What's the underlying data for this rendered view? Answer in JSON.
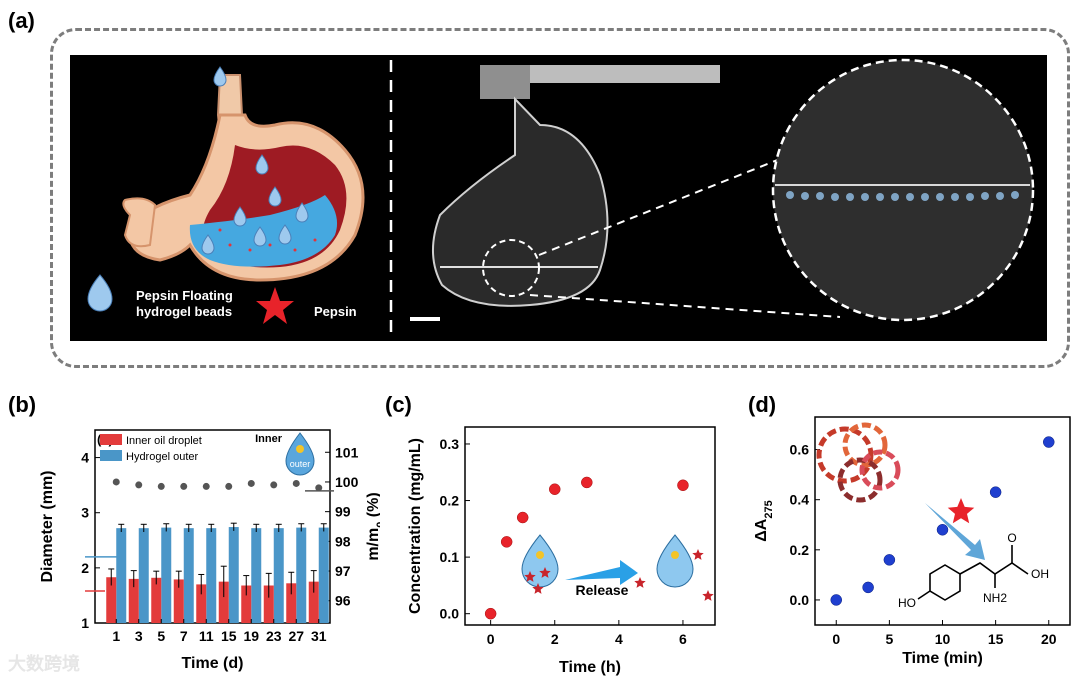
{
  "panel_labels": {
    "a": "(a)",
    "b": "(b)",
    "c": "(c)",
    "d": "(d)"
  },
  "panel_a": {
    "legend_beads": "Pepsin Floating\nhydrogel beads",
    "legend_beads_line1": "Pepsin Floating",
    "legend_beads_line2": "hydrogel beads",
    "legend_pepsin": "Pepsin"
  },
  "colors": {
    "red_marker": "#e8232a",
    "blue_bar": "#4a96c8",
    "red_bar": "#e33b3b",
    "grey_marker": "#555555",
    "blue_marker": "#1f3fcf",
    "frame": "#7d7d7d"
  },
  "watermark": "大数跨境",
  "chart_data": [
    {
      "type": "bar",
      "panel": "b",
      "inset_label": "(a)",
      "categories": [
        "1",
        "3",
        "5",
        "7",
        "11",
        "15",
        "19",
        "23",
        "27",
        "31"
      ],
      "xlabel": "Time (d)",
      "ylabel": "Diameter (mm)",
      "y2label": "m/m0 (%)",
      "y2label_prefix": "m/m",
      "y2label_sub": "0",
      "y2label_suffix": " (%)",
      "ylim": [
        1,
        4.5
      ],
      "yticks": [
        "1",
        "2",
        "3",
        "4"
      ],
      "y2lim": [
        95.25,
        101.75
      ],
      "y2ticks": [
        "96",
        "97",
        "98",
        "99",
        "100",
        "101"
      ],
      "series": [
        {
          "name": "Inner oil droplet",
          "values": [
            1.83,
            1.8,
            1.82,
            1.79,
            1.7,
            1.75,
            1.68,
            1.68,
            1.72,
            1.75
          ],
          "errors": [
            0.15,
            0.15,
            0.12,
            0.15,
            0.18,
            0.28,
            0.18,
            0.22,
            0.2,
            0.2
          ]
        },
        {
          "name": "Hydrogel outer",
          "values": [
            2.72,
            2.72,
            2.73,
            2.72,
            2.72,
            2.74,
            2.72,
            2.72,
            2.73,
            2.73
          ],
          "errors": [
            0.07,
            0.07,
            0.07,
            0.07,
            0.07,
            0.07,
            0.07,
            0.07,
            0.07,
            0.07
          ]
        },
        {
          "name": "mass ratio",
          "axis": "right",
          "values": [
            100.0,
            99.9,
            99.85,
            99.85,
            99.85,
            99.85,
            99.95,
            99.9,
            99.95,
            99.8
          ]
        }
      ],
      "legend": [
        "Inner oil droplet",
        "Hydrogel outer"
      ],
      "inset": {
        "inner": "Inner",
        "outer": "outer"
      }
    },
    {
      "type": "scatter",
      "panel": "c",
      "xlabel": "Time (h)",
      "ylabel": "Concentration (mg/mL)",
      "xlim": [
        -0.8,
        7
      ],
      "ylim": [
        -0.02,
        0.33
      ],
      "xticks": [
        "0",
        "2",
        "4",
        "6"
      ],
      "yticks": [
        "0.0",
        "0.1",
        "0.2",
        "0.3"
      ],
      "x": [
        0,
        0.5,
        1,
        2,
        3,
        6
      ],
      "y": [
        0.0,
        0.127,
        0.17,
        0.22,
        0.232,
        0.227
      ],
      "inset_text": "Release"
    },
    {
      "type": "scatter",
      "panel": "d",
      "xlabel": "Time (min)",
      "ylabel": "ΔA275",
      "ylabel_main": "ΔA",
      "ylabel_sub": "275",
      "xlim": [
        -2,
        22
      ],
      "ylim": [
        -0.1,
        0.73
      ],
      "xticks": [
        "0",
        "5",
        "10",
        "15",
        "20"
      ],
      "yticks": [
        "0.0",
        "0.2",
        "0.4",
        "0.6"
      ],
      "x": [
        0,
        3,
        5,
        10,
        15,
        20
      ],
      "y": [
        0.0,
        0.05,
        0.16,
        0.28,
        0.43,
        0.63
      ],
      "molecule": {
        "oh": "OH",
        "nh2": "NH2",
        "ho": "HO",
        "o": "O"
      }
    }
  ]
}
